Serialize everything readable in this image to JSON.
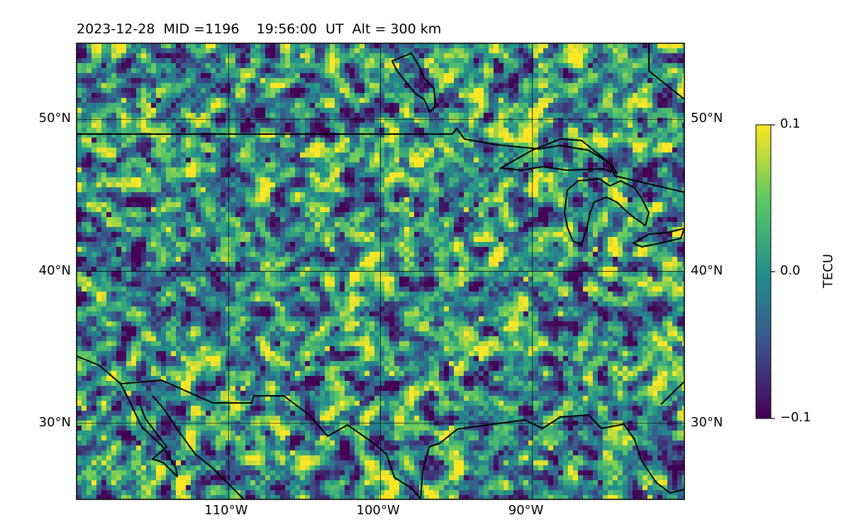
{
  "figure": {
    "title": {
      "date": "2023-12-28",
      "mid": "MID =1196",
      "time": "19:56:00  UT",
      "alt": "Alt = 300 km"
    }
  },
  "map": {
    "type": "heatmap",
    "projection": "PlateCarree",
    "lon_range": [
      -120,
      -80
    ],
    "lat_range": [
      25,
      55
    ],
    "gridlines": true,
    "lat_ticks": [
      {
        "value": 50,
        "label": "50°N"
      },
      {
        "value": 40,
        "label": "40°N"
      },
      {
        "value": 30,
        "label": "30°N"
      }
    ],
    "lon_ticks": [
      {
        "value": -110,
        "label": "110°W"
      },
      {
        "value": -100,
        "label": "100°W"
      },
      {
        "value": -90,
        "label": "90°W"
      }
    ],
    "colormap": "viridis",
    "colors": [
      "#440154",
      "#3b528b",
      "#21918c",
      "#5ec962",
      "#fde725"
    ],
    "boundaries": "coastlines and country borders"
  },
  "colorbar": {
    "label": "TECU",
    "range": [
      -0.1,
      0.1
    ],
    "ticks": [
      {
        "value": 0.1,
        "label": "0.1"
      },
      {
        "value": 0.0,
        "label": "0.0"
      },
      {
        "value": -0.1,
        "label": "−0.1"
      }
    ]
  },
  "chart_data": {
    "type": "heatmap",
    "title": "2023-12-28  MID =1196    19:56:00  UT  Alt = 300 km",
    "x_range": [
      -120,
      -80
    ],
    "y_range": [
      25,
      55
    ],
    "value_range": [
      -0.1,
      0.1
    ],
    "colorbar_label": "TECU",
    "grid": true
  }
}
